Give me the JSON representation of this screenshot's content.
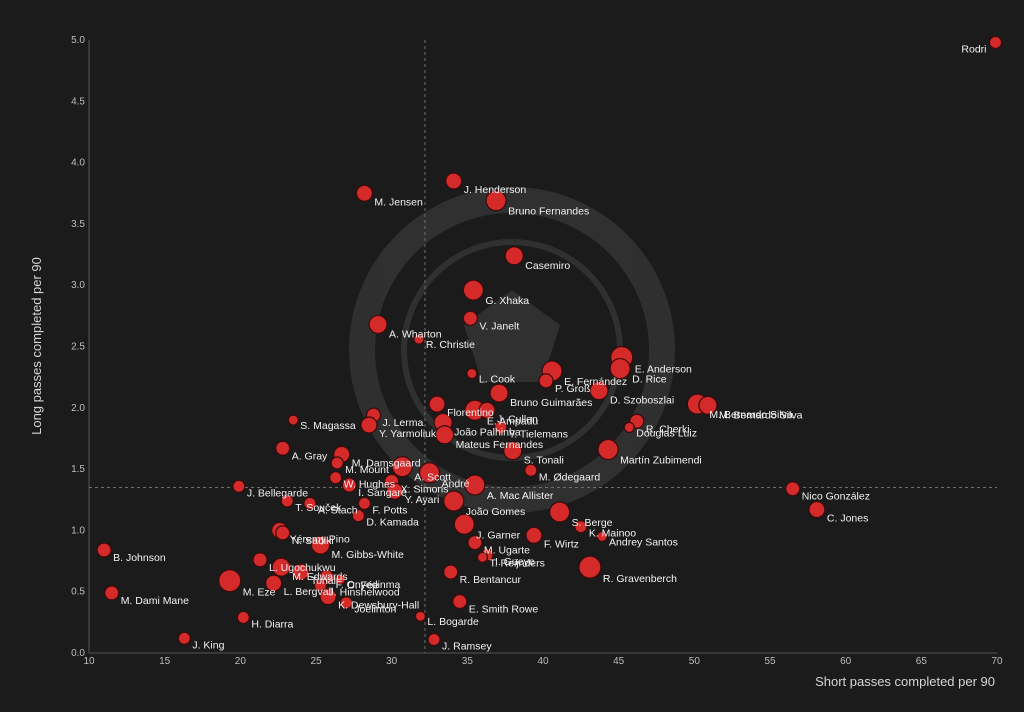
{
  "chart_data": {
    "type": "scatter",
    "xlabel": "Short passes completed per 90",
    "ylabel": "Long passes completed per 90",
    "xlim": [
      10,
      70
    ],
    "ylim": [
      0,
      5
    ],
    "x_ticks": [
      "10",
      "15",
      "20",
      "25",
      "30",
      "35",
      "40",
      "45",
      "50",
      "55",
      "60",
      "65",
      "70"
    ],
    "y_ticks": [
      "0.0",
      "0.5",
      "1.0",
      "1.5",
      "2.0",
      "2.5",
      "3.0",
      "3.5",
      "4.0",
      "4.5",
      "5.0"
    ],
    "reference_lines": {
      "x_mean": 32.2,
      "y_mean": 1.35
    },
    "grid": false,
    "colors": {
      "point": "#d42a2a",
      "background": "#1b1b1b",
      "text": "#f2f2f2"
    },
    "points": [
      {
        "label": "Rodri",
        "x": 69.9,
        "y": 4.98,
        "size": 6
      },
      {
        "label": "J. Henderson",
        "x": 34.1,
        "y": 3.85,
        "size": 8
      },
      {
        "label": "M. Jensen",
        "x": 28.2,
        "y": 3.75,
        "size": 8
      },
      {
        "label": "Bruno Fernandes",
        "x": 36.9,
        "y": 3.69,
        "size": 10
      },
      {
        "label": "Casemiro",
        "x": 38.1,
        "y": 3.24,
        "size": 9
      },
      {
        "label": "G. Xhaka",
        "x": 35.4,
        "y": 2.96,
        "size": 10
      },
      {
        "label": "A. Wharton",
        "x": 29.1,
        "y": 2.68,
        "size": 9
      },
      {
        "label": "V. Janelt",
        "x": 35.2,
        "y": 2.73,
        "size": 7
      },
      {
        "label": "R. Christie",
        "x": 31.8,
        "y": 2.56,
        "size": 5
      },
      {
        "label": "E. Anderson",
        "x": 45.2,
        "y": 2.41,
        "size": 11
      },
      {
        "label": "D. Rice",
        "x": 45.1,
        "y": 2.32,
        "size": 10
      },
      {
        "label": "E. Fernández",
        "x": 40.6,
        "y": 2.3,
        "size": 10
      },
      {
        "label": "P. Groß",
        "x": 40.2,
        "y": 2.22,
        "size": 7
      },
      {
        "label": "L. Cook",
        "x": 35.3,
        "y": 2.28,
        "size": 5
      },
      {
        "label": "D. Szoboszlai",
        "x": 43.7,
        "y": 2.14,
        "size": 9
      },
      {
        "label": "Bruno Guimarães",
        "x": 37.1,
        "y": 2.12,
        "size": 9
      },
      {
        "label": "Florentino",
        "x": 33.0,
        "y": 2.03,
        "size": 8
      },
      {
        "label": "M. Bernardo Silva",
        "x": 50.2,
        "y": 2.03,
        "size": 10
      },
      {
        "label": "M. Bernardo Silva",
        "x": 50.9,
        "y": 2.02,
        "size": 9
      },
      {
        "label": "E. Ampadu",
        "x": 35.5,
        "y": 1.98,
        "size": 10
      },
      {
        "label": "J. Cullen",
        "x": 36.3,
        "y": 1.98,
        "size": 8
      },
      {
        "label": "R. Cherki",
        "x": 46.2,
        "y": 1.89,
        "size": 7
      },
      {
        "label": "Douglas Luiz",
        "x": 45.7,
        "y": 1.84,
        "size": 5
      },
      {
        "label": "J. Lerma",
        "x": 28.8,
        "y": 1.94,
        "size": 7
      },
      {
        "label": "S. Magassa",
        "x": 23.5,
        "y": 1.9,
        "size": 5
      },
      {
        "label": "Y. Yarmoliuk",
        "x": 28.5,
        "y": 1.86,
        "size": 8
      },
      {
        "label": "Y. Tielemans",
        "x": 37.2,
        "y": 1.84,
        "size": 6
      },
      {
        "label": "João Palhinha",
        "x": 33.4,
        "y": 1.88,
        "size": 9
      },
      {
        "label": "Mateus Fernandes",
        "x": 33.5,
        "y": 1.78,
        "size": 9
      },
      {
        "label": "S. Tonali",
        "x": 38.0,
        "y": 1.65,
        "size": 9
      },
      {
        "label": "Martín Zubimendi",
        "x": 44.3,
        "y": 1.66,
        "size": 10
      },
      {
        "label": "A. Gray",
        "x": 22.8,
        "y": 1.67,
        "size": 7
      },
      {
        "label": "M. Damsgaard",
        "x": 26.7,
        "y": 1.62,
        "size": 8
      },
      {
        "label": "M. Mount",
        "x": 26.4,
        "y": 1.55,
        "size": 6
      },
      {
        "label": "A. Scott",
        "x": 30.7,
        "y": 1.52,
        "size": 10
      },
      {
        "label": "André",
        "x": 32.5,
        "y": 1.47,
        "size": 10
      },
      {
        "label": "M. Ødegaard",
        "x": 39.2,
        "y": 1.49,
        "size": 6
      },
      {
        "label": "W. Hughes",
        "x": 26.3,
        "y": 1.43,
        "size": 6
      },
      {
        "label": "X. Simons",
        "x": 30.0,
        "y": 1.4,
        "size": 7
      },
      {
        "label": "A. Mac Allister",
        "x": 35.5,
        "y": 1.37,
        "size": 10
      },
      {
        "label": "Nico González",
        "x": 56.5,
        "y": 1.34,
        "size": 7
      },
      {
        "label": "J. Bellegarde",
        "x": 19.9,
        "y": 1.36,
        "size": 6
      },
      {
        "label": "I. Sangare",
        "x": 27.2,
        "y": 1.37,
        "size": 7
      },
      {
        "label": "Y. Ayari",
        "x": 30.2,
        "y": 1.32,
        "size": 8
      },
      {
        "label": "João Gomes",
        "x": 34.1,
        "y": 1.24,
        "size": 10
      },
      {
        "label": "T. Souček",
        "x": 23.1,
        "y": 1.24,
        "size": 6
      },
      {
        "label": "A. Stach",
        "x": 24.6,
        "y": 1.22,
        "size": 6
      },
      {
        "label": "F. Potts",
        "x": 28.2,
        "y": 1.22,
        "size": 6
      },
      {
        "label": "C. Jones",
        "x": 58.1,
        "y": 1.17,
        "size": 8
      },
      {
        "label": "S. Berge",
        "x": 41.1,
        "y": 1.15,
        "size": 10
      },
      {
        "label": "D. Kamada",
        "x": 27.8,
        "y": 1.12,
        "size": 6
      },
      {
        "label": "K. Mainoo",
        "x": 42.5,
        "y": 1.03,
        "size": 6
      },
      {
        "label": "J. Garner",
        "x": 34.8,
        "y": 1.05,
        "size": 10
      },
      {
        "label": "Andrey Santos",
        "x": 43.9,
        "y": 0.95,
        "size": 5
      },
      {
        "label": "F. Wirtz",
        "x": 39.4,
        "y": 0.96,
        "size": 8
      },
      {
        "label": "Yéremy Pino",
        "x": 22.6,
        "y": 1.0,
        "size": 8
      },
      {
        "label": "N. Sadiki",
        "x": 22.8,
        "y": 0.98,
        "size": 7
      },
      {
        "label": "M. Gibbs-White",
        "x": 25.3,
        "y": 0.88,
        "size": 9
      },
      {
        "label": "M. Ugarte",
        "x": 35.5,
        "y": 0.9,
        "size": 7
      },
      {
        "label": "B. Johnson",
        "x": 11.0,
        "y": 0.84,
        "size": 7
      },
      {
        "label": "I. Gueye",
        "x": 36.3,
        "y": 0.8,
        "size": 6
      },
      {
        "label": "T. Reijnders",
        "x": 36.0,
        "y": 0.78,
        "size": 5
      },
      {
        "label": "L. Ugochukwu",
        "x": 21.3,
        "y": 0.76,
        "size": 7
      },
      {
        "label": "M. Edwards",
        "x": 22.7,
        "y": 0.7,
        "size": 9
      },
      {
        "label": "Tonali",
        "x": 24.0,
        "y": 0.66,
        "size": 8
      },
      {
        "label": "R. Gravenberch",
        "x": 43.1,
        "y": 0.7,
        "size": 11
      },
      {
        "label": "R. Bentancur",
        "x": 33.9,
        "y": 0.66,
        "size": 7
      },
      {
        "label": "F. Onyedinma",
        "x": 25.7,
        "y": 0.62,
        "size": 7
      },
      {
        "label": "M. Eze",
        "x": 19.3,
        "y": 0.59,
        "size": 11
      },
      {
        "label": "L. Bergvall",
        "x": 22.2,
        "y": 0.57,
        "size": 8
      },
      {
        "label": "C. Fée",
        "x": 26.6,
        "y": 0.6,
        "size": 5
      },
      {
        "label": "J. Hinshelwood",
        "x": 25.3,
        "y": 0.55,
        "size": 6
      },
      {
        "label": "M. Dami Mane",
        "x": 11.5,
        "y": 0.49,
        "size": 7
      },
      {
        "label": "K. Dewsbury-Hall",
        "x": 25.8,
        "y": 0.46,
        "size": 8
      },
      {
        "label": "E. Smith Rowe",
        "x": 34.5,
        "y": 0.42,
        "size": 7
      },
      {
        "label": "Joelinton",
        "x": 27.0,
        "y": 0.41,
        "size": 6
      },
      {
        "label": "H. Diarra",
        "x": 20.2,
        "y": 0.29,
        "size": 6
      },
      {
        "label": "L. Bogarde",
        "x": 31.9,
        "y": 0.3,
        "size": 5
      },
      {
        "label": "J. King",
        "x": 16.3,
        "y": 0.12,
        "size": 6
      },
      {
        "label": "J. Ramsey",
        "x": 32.8,
        "y": 0.11,
        "size": 6
      }
    ]
  }
}
